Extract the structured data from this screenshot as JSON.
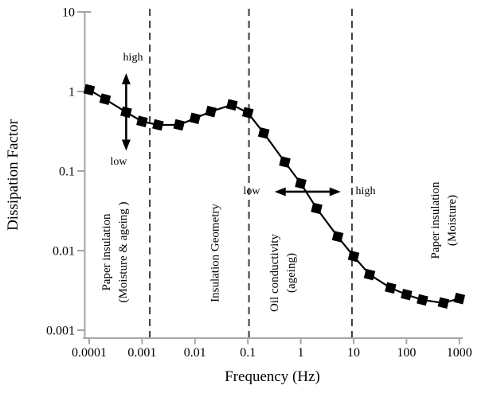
{
  "figure": {
    "background": "#ffffff",
    "line_color": "#000000",
    "axis_color": "#a6a6a6",
    "divider_color": "#3a3a3a"
  },
  "chart_data": {
    "type": "line",
    "title": "",
    "xlabel": "Frequency (Hz)",
    "ylabel": "Dissipation Factor",
    "x_scale": "log",
    "y_scale": "log",
    "xlim": [
      0.0001,
      1000
    ],
    "ylim": [
      0.001,
      10
    ],
    "grid": false,
    "legend": false,
    "x_ticks": [
      0.0001,
      0.001,
      0.01,
      0.1,
      1,
      10,
      100,
      1000
    ],
    "x_tick_labels": [
      "0.0001",
      "0.001",
      "0.01",
      "0.1",
      "1",
      "10",
      "100",
      "1000"
    ],
    "y_ticks": [
      10,
      1,
      0.1,
      0.01,
      0.001
    ],
    "y_tick_labels": [
      "10",
      "1",
      "0.1",
      "0.01",
      "0.001"
    ],
    "series": [
      {
        "name": "dissipation-factor",
        "marker": "filled-square",
        "color": "#000000",
        "x": [
          0.0001,
          0.0002,
          0.0005,
          0.001,
          0.002,
          0.005,
          0.01,
          0.02,
          0.05,
          0.1,
          0.2,
          0.5,
          1,
          2,
          5,
          10,
          20,
          50,
          100,
          200,
          500,
          1000
        ],
        "y": [
          1.05,
          0.8,
          0.55,
          0.42,
          0.38,
          0.38,
          0.46,
          0.56,
          0.68,
          0.54,
          0.3,
          0.13,
          0.07,
          0.034,
          0.015,
          0.0085,
          0.005,
          0.0034,
          0.0028,
          0.0024,
          0.0022,
          0.0025
        ]
      }
    ],
    "dividers_hz": [
      0.0014,
      0.105,
      9.3
    ],
    "regions": [
      {
        "lines": [
          "Paper insulation",
          "(Moisture & ageing )"
        ]
      },
      {
        "lines": [
          "Insulation Geometry"
        ]
      },
      {
        "lines": [
          "Oil conductivity",
          "(ageing)"
        ]
      },
      {
        "lines": [
          "Paper insulation",
          "(Moisture)"
        ]
      }
    ],
    "annotations": {
      "vertical_arrow": {
        "x_hz": 0.0005,
        "df_from": 0.18,
        "df_to": 1.7,
        "label_top": "high",
        "label_bottom": "low"
      },
      "horizontal_arrow": {
        "df": 0.055,
        "hz_from": 0.32,
        "hz_to": 5.7,
        "label_left": "low",
        "label_right": "high"
      }
    }
  }
}
